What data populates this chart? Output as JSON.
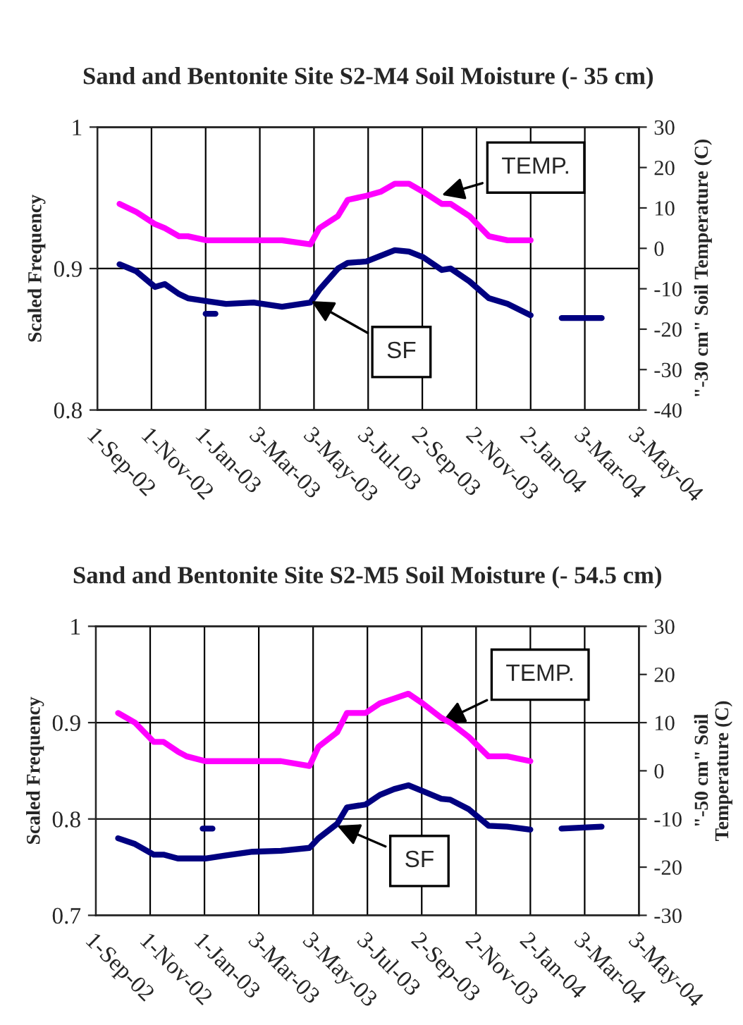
{
  "chart_data": [
    {
      "type": "line",
      "title": "Sand and Bentonite Site S2-M4 Soil Moisture (- 35 cm)",
      "ylabel": "Scaled Frequency",
      "y2label": "\"-30 cm\" Soil Temperature (C)",
      "xlim": [
        "2002-09-01",
        "2004-05-03"
      ],
      "xticks": [
        {
          "value": "2002-09-01",
          "label": "1-Sep-02"
        },
        {
          "value": "2002-11-01",
          "label": "1-Nov-02"
        },
        {
          "value": "2003-01-01",
          "label": "1-Jan-03"
        },
        {
          "value": "2003-03-03",
          "label": "3-Mar-03"
        },
        {
          "value": "2003-05-03",
          "label": "3-May-03"
        },
        {
          "value": "2003-07-03",
          "label": "3-Jul-03"
        },
        {
          "value": "2003-09-02",
          "label": "2-Sep-03"
        },
        {
          "value": "2003-11-02",
          "label": "2-Nov-03"
        },
        {
          "value": "2004-01-02",
          "label": "2-Jan-04"
        },
        {
          "value": "2004-03-03",
          "label": "3-Mar-04"
        },
        {
          "value": "2004-05-03",
          "label": "3-May-04"
        }
      ],
      "ylim": [
        0.8,
        1
      ],
      "yticks": [
        0.8,
        0.9,
        1
      ],
      "y2lim": [
        -40,
        30
      ],
      "y2ticks": [
        -40,
        -30,
        -20,
        -10,
        0,
        10,
        20,
        30
      ],
      "grid": true,
      "marker": "none",
      "line_style": "solid",
      "x": [
        "2002-09-26",
        "2002-10-15",
        "2002-11-05",
        "2002-11-16",
        "2002-12-02",
        "2002-12-12",
        "2003-01-02",
        "2003-01-24",
        "2003-02-24",
        "2003-03-28",
        "2003-04-29",
        "2003-05-09",
        "2003-05-30",
        "2003-06-10",
        "2003-07-01",
        "2003-07-17",
        "2003-08-02",
        "2003-08-18",
        "2003-09-03",
        "2003-09-24",
        "2003-10-04",
        "2003-10-25",
        "2003-11-16",
        "2003-12-07",
        "2004-01-02"
      ],
      "series": [
        {
          "color": "#ff00ff",
          "axis": "y2",
          "values": [
            11,
            9,
            6,
            5,
            3,
            3,
            2,
            2,
            2,
            2,
            1,
            5,
            8,
            12,
            13,
            14,
            16,
            16,
            14,
            11,
            11,
            8,
            3,
            2,
            2
          ]
        },
        {
          "color": "#000080",
          "values": [
            0.903,
            0.898,
            0.887,
            0.889,
            0.882,
            0.879,
            0.877,
            0.875,
            0.876,
            0.873,
            0.876,
            0.885,
            0.9,
            0.904,
            0.905,
            0.909,
            0.913,
            0.912,
            0.908,
            0.899,
            0.9,
            0.891,
            0.879,
            0.875,
            0.867
          ]
        },
        {
          "color": "#000080",
          "x": [
            "2003-01-01",
            "2003-01-12"
          ],
          "values": [
            0.868,
            0.868
          ]
        },
        {
          "color": "#000080",
          "x": [
            "2004-02-06",
            "2004-03-22"
          ],
          "values": [
            0.865,
            0.865
          ]
        }
      ],
      "annotations": [
        {
          "text": "TEMP.",
          "x": "2003-09-24",
          "y": 0.952
        },
        {
          "text": "SF",
          "x": "2003-04-30",
          "y": 0.877
        }
      ]
    },
    {
      "type": "line",
      "title": "Sand and Bentonite Site S2-M5 Soil Moisture (- 54.5 cm)",
      "ylabel": "Scaled Frequency",
      "y2label": "\"-50 cm\" Soil\nTemperature (C)",
      "xlim": [
        "2002-09-01",
        "2004-05-03"
      ],
      "xticks": [
        {
          "value": "2002-09-01",
          "label": "1-Sep-02"
        },
        {
          "value": "2002-11-01",
          "label": "1-Nov-02"
        },
        {
          "value": "2003-01-01",
          "label": "1-Jan-03"
        },
        {
          "value": "2003-03-03",
          "label": "3-Mar-03"
        },
        {
          "value": "2003-05-03",
          "label": "3-May-03"
        },
        {
          "value": "2003-07-03",
          "label": "3-Jul-03"
        },
        {
          "value": "2003-09-02",
          "label": "2-Sep-03"
        },
        {
          "value": "2003-11-02",
          "label": "2-Nov-03"
        },
        {
          "value": "2004-01-02",
          "label": "2-Jan-04"
        },
        {
          "value": "2004-03-03",
          "label": "3-Mar-04"
        },
        {
          "value": "2004-05-03",
          "label": "3-May-04"
        }
      ],
      "ylim": [
        0.7,
        1
      ],
      "yticks": [
        0.7,
        0.8,
        0.9,
        1
      ],
      "y2lim": [
        -30,
        30
      ],
      "y2ticks": [
        -30,
        -20,
        -10,
        0,
        10,
        20,
        30
      ],
      "grid": true,
      "marker": "none",
      "line_style": "solid",
      "x": [
        "2002-09-26",
        "2002-10-15",
        "2002-11-05",
        "2002-11-16",
        "2002-12-02",
        "2002-12-12",
        "2003-01-02",
        "2003-01-24",
        "2003-02-24",
        "2003-03-28",
        "2003-04-29",
        "2003-05-09",
        "2003-05-30",
        "2003-06-10",
        "2003-07-01",
        "2003-07-17",
        "2003-08-02",
        "2003-08-18",
        "2003-09-03",
        "2003-09-24",
        "2003-10-04",
        "2003-10-25",
        "2003-11-16",
        "2003-12-07",
        "2004-01-02"
      ],
      "series": [
        {
          "color": "#ff00ff",
          "axis": "y2",
          "values": [
            12,
            10,
            6,
            6,
            4,
            3,
            2,
            2,
            2,
            2,
            1,
            5,
            8,
            12,
            12,
            14,
            15,
            16,
            14,
            11,
            10,
            7,
            3,
            3,
            2
          ]
        },
        {
          "color": "#000080",
          "values": [
            0.78,
            0.774,
            0.763,
            0.763,
            0.759,
            0.759,
            0.759,
            0.762,
            0.766,
            0.767,
            0.77,
            0.78,
            0.795,
            0.812,
            0.815,
            0.825,
            0.831,
            0.835,
            0.829,
            0.821,
            0.82,
            0.81,
            0.793,
            0.792,
            0.789
          ]
        },
        {
          "color": "#000080",
          "x": [
            "2002-12-30",
            "2003-01-10"
          ],
          "values": [
            0.79,
            0.79
          ]
        },
        {
          "color": "#000080",
          "x": [
            "2004-02-06",
            "2004-03-22"
          ],
          "values": [
            0.79,
            0.792
          ]
        }
      ],
      "annotations": [
        {
          "text": "TEMP.",
          "x": "2003-09-25",
          "y": 0.901
        },
        {
          "text": "SF",
          "x": "2003-05-30",
          "y": 0.793
        }
      ]
    }
  ]
}
